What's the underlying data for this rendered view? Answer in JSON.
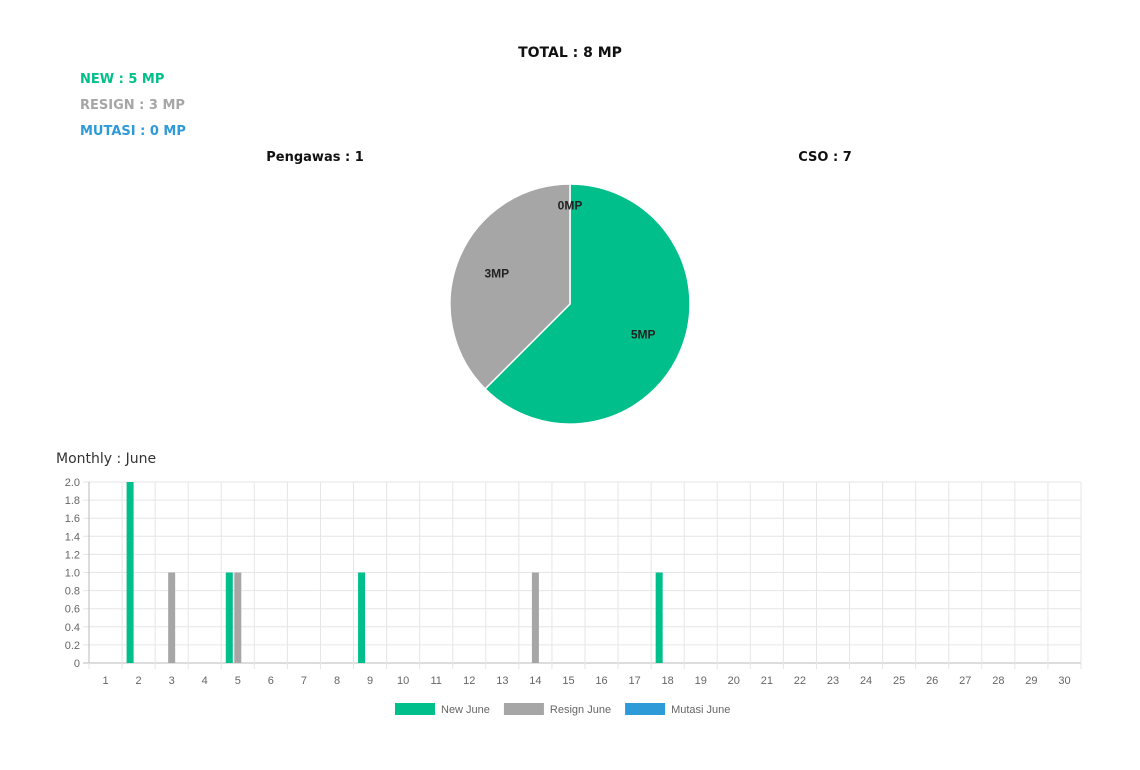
{
  "summary": {
    "total": "TOTAL : 8 MP",
    "new": "NEW : 5 MP",
    "resign": "RESIGN : 3 MP",
    "mutasi": "MUTASI : 0 MP",
    "pengawas": "Pengawas : 1",
    "cso": "CSO : 7",
    "monthly": "Monthly : June"
  },
  "colors": {
    "new": "#00bf8a",
    "resign": "#a6a6a6",
    "mutasi": "#2e9ad8"
  },
  "chart_data": [
    {
      "type": "pie",
      "slices": [
        {
          "label": "5MP",
          "value": 5,
          "color": "#00bf8a"
        },
        {
          "label": "3MP",
          "value": 3,
          "color": "#a6a6a6"
        },
        {
          "label": "0MP",
          "value": 0,
          "color": "#2e9ad8"
        }
      ]
    },
    {
      "type": "bar",
      "title": "Monthly : June",
      "categories": [
        "1",
        "2",
        "3",
        "4",
        "5",
        "6",
        "7",
        "8",
        "9",
        "10",
        "11",
        "12",
        "13",
        "14",
        "15",
        "16",
        "17",
        "18",
        "19",
        "20",
        "21",
        "22",
        "23",
        "24",
        "25",
        "26",
        "27",
        "28",
        "29",
        "30"
      ],
      "ylim": [
        0,
        2.0
      ],
      "yticks": [
        "0",
        "0.2",
        "0.4",
        "0.6",
        "0.8",
        "1.0",
        "1.2",
        "1.4",
        "1.6",
        "1.8",
        "2.0"
      ],
      "grid": true,
      "legend_position": "bottom",
      "series": [
        {
          "name": "New June",
          "color": "#00bf8a",
          "values": [
            0,
            2,
            0,
            0,
            1,
            0,
            0,
            0,
            1,
            0,
            0,
            0,
            0,
            0,
            0,
            0,
            0,
            1,
            0,
            0,
            0,
            0,
            0,
            0,
            0,
            0,
            0,
            0,
            0,
            0
          ]
        },
        {
          "name": "Resign June",
          "color": "#a6a6a6",
          "values": [
            0,
            0,
            1,
            0,
            1,
            0,
            0,
            0,
            0,
            0,
            0,
            0,
            0,
            1,
            0,
            0,
            0,
            0,
            0,
            0,
            0,
            0,
            0,
            0,
            0,
            0,
            0,
            0,
            0,
            0
          ]
        },
        {
          "name": "Mutasi June",
          "color": "#2e9ad8",
          "values": [
            0,
            0,
            0,
            0,
            0,
            0,
            0,
            0,
            0,
            0,
            0,
            0,
            0,
            0,
            0,
            0,
            0,
            0,
            0,
            0,
            0,
            0,
            0,
            0,
            0,
            0,
            0,
            0,
            0,
            0
          ]
        }
      ]
    }
  ]
}
